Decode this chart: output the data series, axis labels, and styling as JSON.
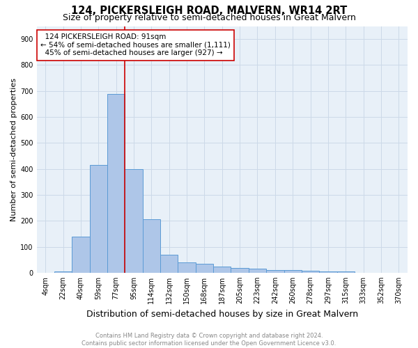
{
  "title": "124, PICKERSLEIGH ROAD, MALVERN, WR14 2RT",
  "subtitle": "Size of property relative to semi-detached houses in Great Malvern",
  "xlabel": "Distribution of semi-detached houses by size in Great Malvern",
  "ylabel": "Number of semi-detached properties",
  "footnote": "Contains HM Land Registry data © Crown copyright and database right 2024.\nContains public sector information licensed under the Open Government Licence v3.0.",
  "bar_labels": [
    "4sqm",
    "22sqm",
    "40sqm",
    "59sqm",
    "77sqm",
    "95sqm",
    "114sqm",
    "132sqm",
    "150sqm",
    "168sqm",
    "187sqm",
    "205sqm",
    "223sqm",
    "242sqm",
    "260sqm",
    "278sqm",
    "297sqm",
    "315sqm",
    "333sqm",
    "352sqm",
    "370sqm"
  ],
  "bar_values": [
    1,
    5,
    140,
    415,
    690,
    400,
    205,
    70,
    40,
    35,
    25,
    18,
    15,
    10,
    10,
    8,
    5,
    5,
    1,
    1,
    0
  ],
  "bar_color": "#aec6e8",
  "bar_edge_color": "#5b9bd5",
  "property_line_label": "124 PICKERSLEIGH ROAD: 91sqm",
  "pct_smaller": 54,
  "n_smaller": 1111,
  "pct_larger": 45,
  "n_larger": 927,
  "annotation_box_color": "#cc0000",
  "vline_color": "#cc0000",
  "ylim": [
    0,
    950
  ],
  "yticks": [
    0,
    100,
    200,
    300,
    400,
    500,
    600,
    700,
    800,
    900
  ],
  "grid_color": "#ccd9e8",
  "bg_color": "#e8f0f8",
  "title_fontsize": 10.5,
  "subtitle_fontsize": 9,
  "xlabel_fontsize": 9,
  "ylabel_fontsize": 8,
  "tick_fontsize": 7,
  "annotation_fontsize": 7.5,
  "footnote_fontsize": 6
}
